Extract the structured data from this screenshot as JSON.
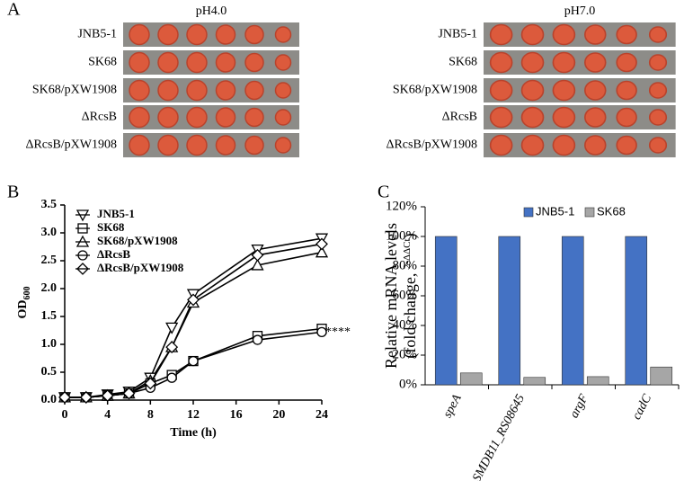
{
  "panel_a": {
    "letter": "A",
    "panels": [
      {
        "title": "pH4.0",
        "rows": [
          "JNB5-1",
          "SK68",
          "SK68/pXW1908",
          "ΔRcsB",
          "ΔRcsB/pXW1908"
        ]
      },
      {
        "title": "pH7.0",
        "rows": [
          "JNB5-1",
          "SK68",
          "SK68/pXW1908",
          "ΔRcsB",
          "ΔRcsB/pXW1908"
        ]
      }
    ]
  },
  "chart_data": [
    {
      "type": "line",
      "letter": "B",
      "x_label": "Time (h)",
      "y_label": "OD",
      "y_label_sub": "600",
      "annotation": "****",
      "x": [
        0,
        2,
        4,
        6,
        8,
        10,
        12,
        18,
        24
      ],
      "xlim": [
        0,
        24
      ],
      "xticks": [
        0,
        4,
        8,
        12,
        16,
        20,
        24
      ],
      "ylim": [
        0,
        3.5
      ],
      "yticks": [
        {
          "value": 0,
          "label": "0.0"
        },
        {
          "value": 0.5,
          "label": "0.5"
        },
        {
          "value": 1,
          "label": "1.0"
        },
        {
          "value": 1.5,
          "label": "1.5"
        },
        {
          "value": 2,
          "label": "2.0"
        },
        {
          "value": 2.5,
          "label": "2.5"
        },
        {
          "value": 3,
          "label": "3.0"
        },
        {
          "value": 3.5,
          "label": "3.5"
        }
      ],
      "series": [
        {
          "name": "JNB5-1",
          "color": "#000000",
          "marker": "triangle-down",
          "values": [
            0.05,
            0.05,
            0.1,
            0.15,
            0.4,
            1.3,
            1.9,
            2.7,
            2.9
          ]
        },
        {
          "name": "SK68",
          "color": "#000000",
          "marker": "square",
          "values": [
            0.05,
            0.05,
            0.08,
            0.12,
            0.3,
            0.45,
            0.7,
            1.15,
            1.28
          ]
        },
        {
          "name": "SK68/pXW1908",
          "color": "#000000",
          "marker": "triangle-up",
          "values": [
            0.05,
            0.05,
            0.08,
            0.12,
            0.35,
            0.95,
            1.75,
            2.42,
            2.65
          ]
        },
        {
          "name": "ΔRcsB",
          "color": "#000000",
          "marker": "circle",
          "values": [
            0.05,
            0.05,
            0.08,
            0.12,
            0.22,
            0.4,
            0.7,
            1.08,
            1.22
          ]
        },
        {
          "name": "ΔRcsB/pXW1908",
          "color": "#000000",
          "marker": "diamond",
          "values": [
            0.05,
            0.05,
            0.08,
            0.12,
            0.3,
            0.95,
            1.8,
            2.6,
            2.8
          ]
        }
      ]
    },
    {
      "type": "bar",
      "letter": "C",
      "y_label": "Relative mRNA levels",
      "y_label2": "(fold change, ",
      "y_label2_sup": "2-ΔΔCt",
      "y_label2_end": ")",
      "categories": [
        "speA",
        "SMDB11_RS08645",
        "argF",
        "cadC"
      ],
      "ylim": [
        0,
        120
      ],
      "yticks": [
        {
          "value": 0,
          "label": "0%"
        },
        {
          "value": 20,
          "label": "20%"
        },
        {
          "value": 40,
          "label": "40%"
        },
        {
          "value": 60,
          "label": "60%"
        },
        {
          "value": 80,
          "label": "80%"
        },
        {
          "value": 100,
          "label": "100%"
        },
        {
          "value": 120,
          "label": "120%"
        }
      ],
      "series": [
        {
          "name": "JNB5-1",
          "color": "#4472c4",
          "values": [
            100,
            100,
            100,
            100
          ]
        },
        {
          "name": "SK68",
          "color": "#a6a6a6",
          "values": [
            8,
            5,
            5.5,
            12
          ]
        }
      ]
    }
  ]
}
